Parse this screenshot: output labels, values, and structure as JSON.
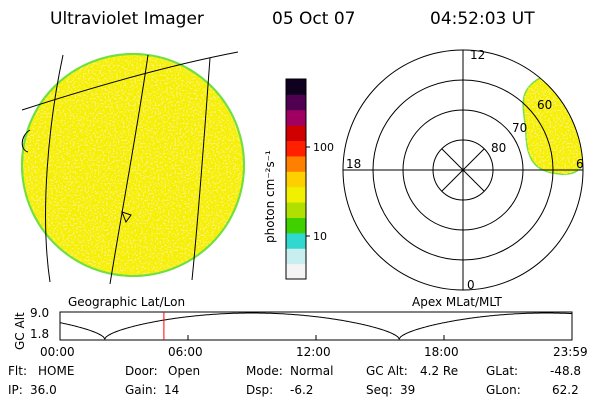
{
  "header": {
    "instrument": "Ultraviolet Imager",
    "date": "05 Oct 07",
    "time": "04:52:03 UT"
  },
  "colors": {
    "background": "#ffffff",
    "disk_fill": "#f4f000",
    "disk_noise": "#ffe040",
    "disk_edge": "#70e040",
    "grid_line": "#000000",
    "marker_line": "#ff0000"
  },
  "colorbar": {
    "label": "photon cm⁻²s⁻¹",
    "ticks": [
      "100",
      "10"
    ],
    "stops": [
      "#f4f4f4",
      "#c8eef0",
      "#30d8d0",
      "#40d000",
      "#b0e000",
      "#f0f000",
      "#ffd000",
      "#ff8000",
      "#ff2000",
      "#d00000",
      "#a00060",
      "#500050",
      "#100020"
    ]
  },
  "left_panel": {
    "caption": "Geographic Lat/Lon"
  },
  "right_panel": {
    "caption": "Apex MLat/MLT",
    "mlt_labels": {
      "top": "12",
      "left": "18",
      "right": "6",
      "bottom": "0"
    },
    "lat_labels": [
      "60",
      "70",
      "80"
    ]
  },
  "altitude_plot": {
    "ylabel": "GC Alt",
    "yticks": [
      "9.0",
      "1.8"
    ],
    "xticks": [
      "00:00",
      "06:00",
      "12:00",
      "18:00",
      "23:59"
    ],
    "current_time_hours": 4.87
  },
  "status": {
    "row1": [
      {
        "key": "Flt:",
        "value": "HOME"
      },
      {
        "key": "Door:",
        "value": "Open"
      },
      {
        "key": "Mode:",
        "value": "Normal"
      },
      {
        "key": "GC Alt:",
        "value": "4.2 Re"
      },
      {
        "key": "GLat:",
        "value": "-48.8"
      }
    ],
    "row2": [
      {
        "key": "IP:",
        "value": "36.0"
      },
      {
        "key": "Gain:",
        "value": "14"
      },
      {
        "key": "Dsp:",
        "value": "-6.2"
      },
      {
        "key": "Seq:",
        "value": "39"
      },
      {
        "key": "GLon:",
        "value": "62.2"
      }
    ]
  }
}
